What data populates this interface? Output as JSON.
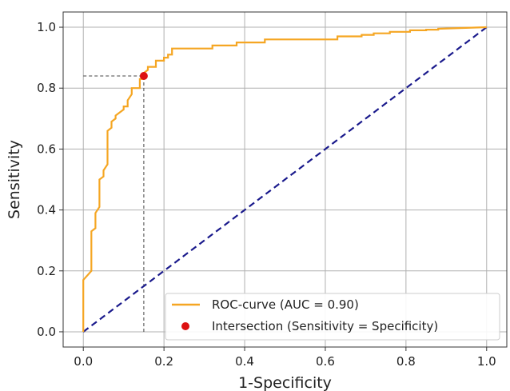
{
  "chart_data": {
    "type": "line",
    "title": "",
    "xlabel": "1-Specificity",
    "ylabel": "Sensitivity",
    "xlim": [
      -0.05,
      1.05
    ],
    "ylim": [
      -0.05,
      1.05
    ],
    "xticks": [
      "0.0",
      "0.2",
      "0.4",
      "0.6",
      "0.8",
      "1.0"
    ],
    "yticks": [
      "0.0",
      "0.2",
      "0.4",
      "0.6",
      "0.8",
      "1.0"
    ],
    "grid": true,
    "legend_position": "bottom-right",
    "series": [
      {
        "name": "ROC-curve (AUC = 0.90)",
        "style": "step-line",
        "color": "#f5a623",
        "x": [
          0.0,
          0.0,
          0.0,
          0.02,
          0.02,
          0.03,
          0.03,
          0.04,
          0.04,
          0.05,
          0.05,
          0.06,
          0.06,
          0.07,
          0.07,
          0.08,
          0.08,
          0.1,
          0.1,
          0.11,
          0.11,
          0.12,
          0.12,
          0.14,
          0.14,
          0.15,
          0.15,
          0.16,
          0.16,
          0.18,
          0.18,
          0.2,
          0.2,
          0.21,
          0.21,
          0.22,
          0.22,
          0.32,
          0.32,
          0.38,
          0.38,
          0.45,
          0.45,
          0.63,
          0.63,
          0.69,
          0.69,
          0.72,
          0.72,
          0.76,
          0.76,
          0.81,
          0.81,
          0.85,
          0.85,
          0.88,
          0.88,
          1.0
        ],
        "y": [
          0.0,
          0.17,
          0.17,
          0.2,
          0.33,
          0.34,
          0.39,
          0.41,
          0.5,
          0.51,
          0.53,
          0.55,
          0.66,
          0.67,
          0.69,
          0.7,
          0.71,
          0.73,
          0.74,
          0.74,
          0.76,
          0.78,
          0.8,
          0.8,
          0.83,
          0.83,
          0.85,
          0.86,
          0.87,
          0.87,
          0.89,
          0.89,
          0.9,
          0.9,
          0.91,
          0.91,
          0.93,
          0.93,
          0.94,
          0.94,
          0.95,
          0.95,
          0.96,
          0.96,
          0.97,
          0.97,
          0.975,
          0.975,
          0.98,
          0.98,
          0.985,
          0.985,
          0.99,
          0.99,
          0.992,
          0.992,
          0.995,
          1.0
        ]
      },
      {
        "name": "",
        "style": "dashed-line",
        "color": "#1a1a8c",
        "x": [
          0.0,
          1.0
        ],
        "y": [
          0.0,
          1.0
        ]
      }
    ],
    "points": [
      {
        "name": "Intersection (Sensitivity = Specificity)",
        "x": 0.15,
        "y": 0.84,
        "color": "#dd1111"
      }
    ],
    "reference_lines": [
      {
        "type": "horizontal-dashed",
        "y": 0.84,
        "x_from": 0.0,
        "x_to": 0.15,
        "color": "#444444"
      },
      {
        "type": "vertical-dashed",
        "x": 0.15,
        "y_from": 0.0,
        "y_to": 0.84,
        "color": "#444444"
      }
    ],
    "legend": [
      {
        "label": "ROC-curve (AUC = 0.90)",
        "marker": "line",
        "color": "#f5a623"
      },
      {
        "label": "Intersection (Sensitivity = Specificity)",
        "marker": "dot",
        "color": "#dd1111"
      }
    ]
  }
}
